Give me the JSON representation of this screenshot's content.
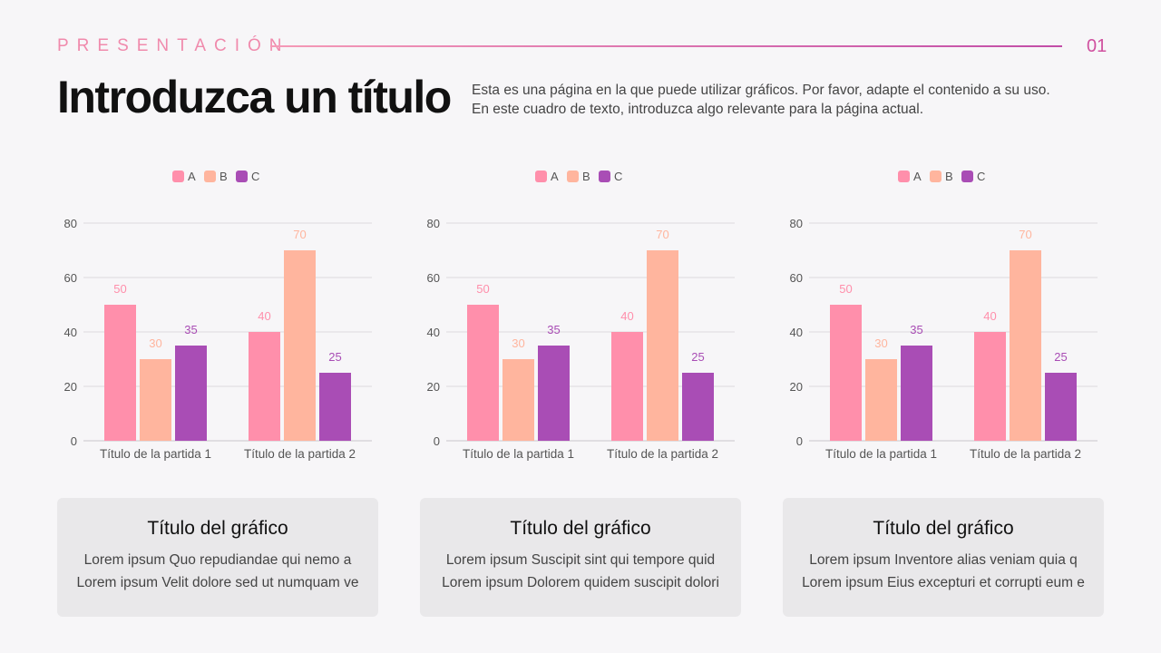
{
  "header": {
    "kicker": "PRESENTACIÓN",
    "page_number": "01",
    "title": "Introduzca un título",
    "description": [
      "Esta es una página en la que puede utilizar gráficos. Por favor, adapte el contenido a su uso.",
      "En este cuadro de texto, introduzca algo relevante para la página actual."
    ]
  },
  "colors": {
    "A": "#ff8fab",
    "B": "#ffb59e",
    "C": "#a94db5",
    "accent": "#f08aac"
  },
  "chart_data": [
    {
      "type": "bar",
      "categories": [
        "Título de la partida 1",
        "Título de la partida 2"
      ],
      "series": [
        {
          "name": "A",
          "values": [
            50,
            40
          ]
        },
        {
          "name": "B",
          "values": [
            30,
            70
          ]
        },
        {
          "name": "C",
          "values": [
            35,
            25
          ]
        }
      ],
      "ylim": [
        0,
        80
      ],
      "yticks": [
        0,
        20,
        40,
        60,
        80
      ],
      "grid": true,
      "legend": "top",
      "data_labels": true
    },
    {
      "type": "bar",
      "categories": [
        "Título de la partida 1",
        "Título de la partida 2"
      ],
      "series": [
        {
          "name": "A",
          "values": [
            50,
            40
          ]
        },
        {
          "name": "B",
          "values": [
            30,
            70
          ]
        },
        {
          "name": "C",
          "values": [
            35,
            25
          ]
        }
      ],
      "ylim": [
        0,
        80
      ],
      "yticks": [
        0,
        20,
        40,
        60,
        80
      ],
      "grid": true,
      "legend": "top",
      "data_labels": true
    },
    {
      "type": "bar",
      "categories": [
        "Título de la partida 1",
        "Título de la partida 2"
      ],
      "series": [
        {
          "name": "A",
          "values": [
            50,
            40
          ]
        },
        {
          "name": "B",
          "values": [
            30,
            70
          ]
        },
        {
          "name": "C",
          "values": [
            35,
            25
          ]
        }
      ],
      "ylim": [
        0,
        80
      ],
      "yticks": [
        0,
        20,
        40,
        60,
        80
      ],
      "grid": true,
      "legend": "top",
      "data_labels": true
    }
  ],
  "cards": [
    {
      "title": "Título del gráfico",
      "lines": [
        "Lorem ipsum Quo repudiandae qui nemo a",
        "Lorem ipsum Velit dolore sed ut numquam ve"
      ]
    },
    {
      "title": "Título del gráfico",
      "lines": [
        "Lorem ipsum Suscipit sint qui tempore quid",
        "Lorem ipsum Dolorem quidem suscipit dolori"
      ]
    },
    {
      "title": "Título del gráfico",
      "lines": [
        "Lorem ipsum Inventore alias veniam quia q",
        "Lorem ipsum Eius excepturi et corrupti eum e"
      ]
    }
  ]
}
